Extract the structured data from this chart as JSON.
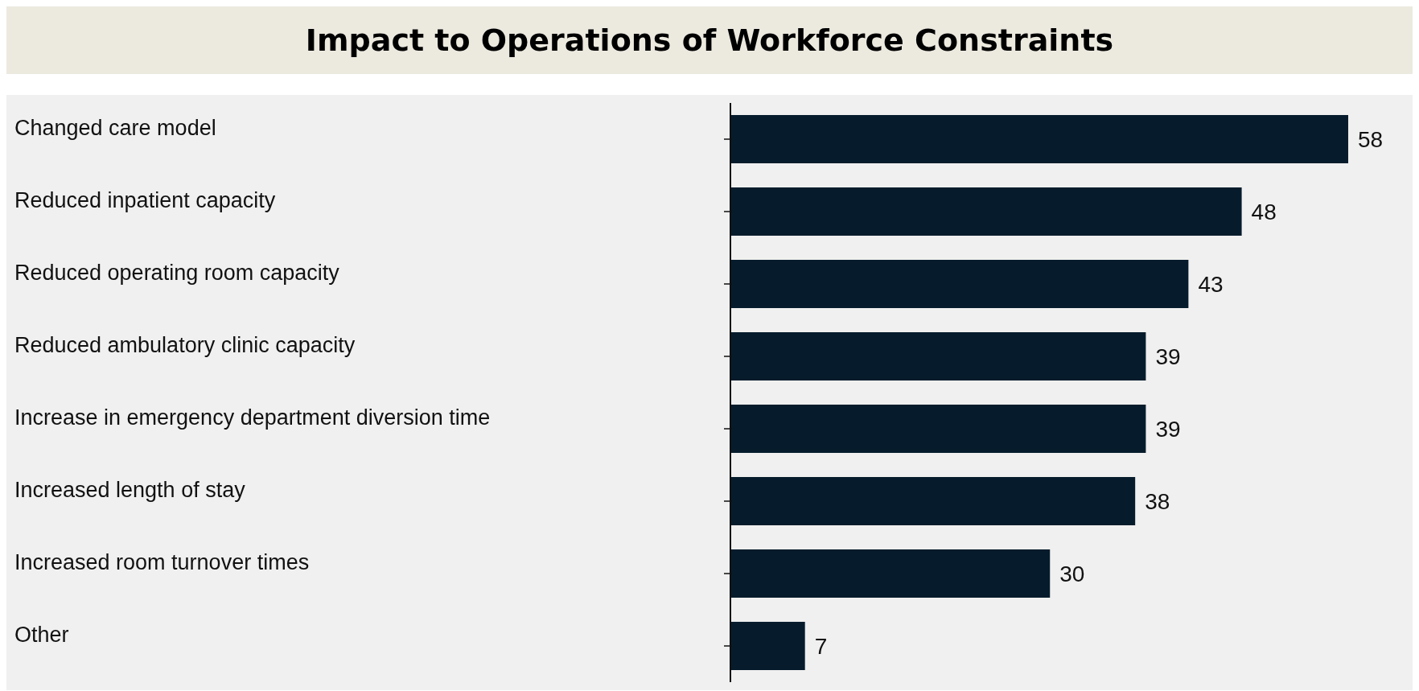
{
  "chart_data": {
    "type": "bar",
    "orientation": "horizontal",
    "title": "Impact to Operations of Workforce Constraints",
    "categories": [
      "Changed care model",
      "Reduced inpatient capacity",
      "Reduced operating room capacity",
      "Reduced ambulatory clinic capacity",
      "Increase in emergency department diversion time",
      "Increased length of stay",
      "Increased room turnover times",
      "Other"
    ],
    "values": [
      58,
      48,
      43,
      39,
      39,
      38,
      30,
      7
    ],
    "color": "#061c2c",
    "data_labels": true
  }
}
